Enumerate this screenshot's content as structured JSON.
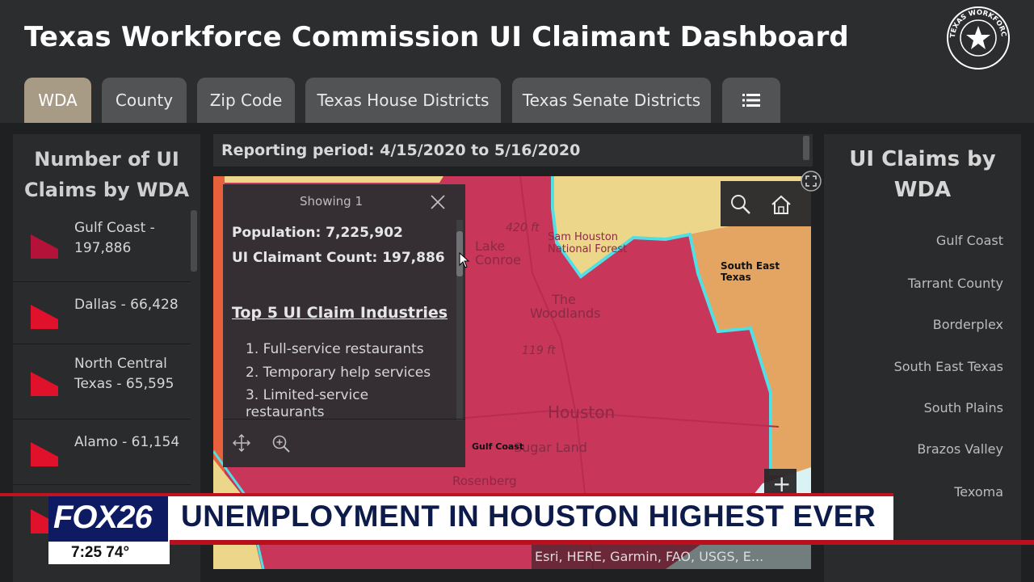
{
  "header": {
    "title": "Texas Workforce Commission UI Claimant Dashboard",
    "seal_text": "TEXAS WORKFORCE COMMISSION"
  },
  "tabs": [
    {
      "label": "WDA",
      "active": true
    },
    {
      "label": "County",
      "active": false
    },
    {
      "label": "Zip Code",
      "active": false
    },
    {
      "label": "Texas House Districts",
      "active": false
    },
    {
      "label": "Texas Senate Districts",
      "active": false
    }
  ],
  "list_icon": "list-icon",
  "left_panel": {
    "title": "Number of UI Claims by WDA",
    "items": [
      {
        "label": "Gulf Coast - 197,886",
        "color": "#b5123a"
      },
      {
        "label": "Dallas - 66,428",
        "color": "#e0112b"
      },
      {
        "label": "North Central Texas - 65,595",
        "color": "#e0112b"
      },
      {
        "label": "Alamo - 61,154",
        "color": "#e0112b"
      }
    ]
  },
  "report": {
    "text": "Reporting period: 4/15/2020 to 5/16/2020"
  },
  "map": {
    "labels": {
      "houston": "Houston",
      "the_woodlands": "The Woodlands",
      "lake_conroe": "Lake Conroe",
      "sam_houston": "Sam Houston National Forest",
      "sugar_land": "Sugar Land",
      "rosenberg": "Rosenberg",
      "elev_420": "420 ft",
      "elev_119": "119 ft",
      "south_east_texas": "South East Texas",
      "gulf_coast": "Gulf Coast"
    },
    "attribution": "Esri, HERE, Garmin, FAO, USGS, E...",
    "zoom_in": "+"
  },
  "popup": {
    "header": "Showing 1",
    "population": "Population: 7,225,902",
    "claimant_count": "UI Claimant Count: 197,886",
    "top5_title": "Top 5 UI Claim Industries",
    "industries": [
      "1. Full-service restaurants",
      "2. Temporary help services",
      "3. Limited-service restaurants"
    ]
  },
  "right_panel": {
    "title": "UI Claims by WDA",
    "legend": [
      "Gulf Coast",
      "Tarrant County",
      "Borderplex",
      "South East Texas",
      "South Plains",
      "Brazos Valley",
      "Texoma"
    ]
  },
  "broadcast": {
    "logo": "FOX26",
    "headline": "UNEMPLOYMENT IN HOUSTON HIGHEST EVER",
    "time_temp": "7:25  74°"
  }
}
